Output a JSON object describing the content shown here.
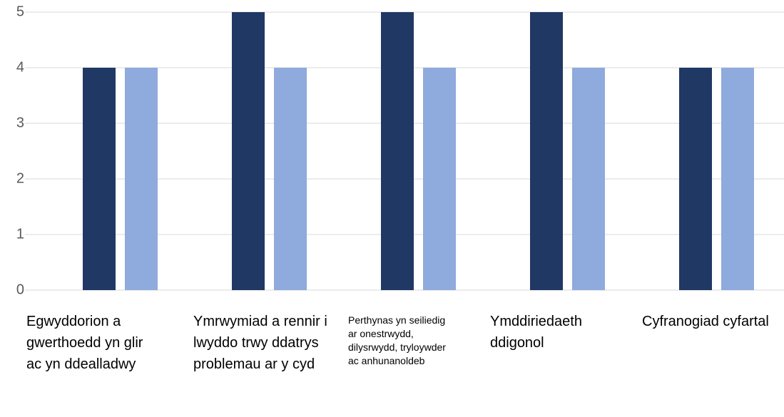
{
  "chart_data": {
    "type": "bar",
    "categories": [
      "Egwyddorion a gwerthoedd yn glir ac yn ddealladwy",
      "Ymrwymiad a rennir i lwyddo trwy ddatrys problemau ar y cyd",
      "Perthynas yn seiliedig ar onestrwydd, dilysrwydd, tryloywder ac anhunanoldeb",
      "Ymddiriedaeth ddigonol",
      "Cyfranogiad cyfartal"
    ],
    "series": [
      {
        "color": "#203864",
        "values": [
          4,
          5,
          5,
          5,
          4
        ]
      },
      {
        "color": "#8faadc",
        "values": [
          4,
          4,
          4,
          4,
          4
        ]
      }
    ],
    "ylim": [
      0,
      5
    ],
    "yticks": [
      0,
      1,
      2,
      3,
      4,
      5
    ],
    "grid": true
  }
}
